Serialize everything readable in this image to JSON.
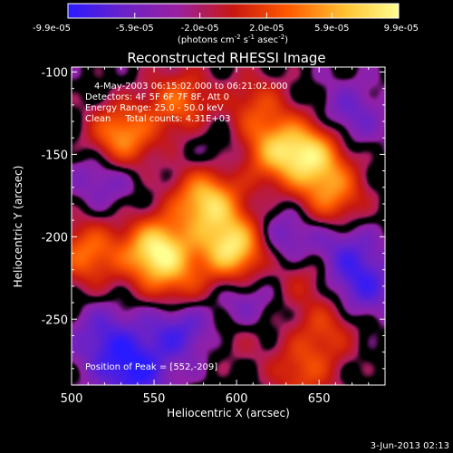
{
  "chart_data": {
    "type": "heatmap",
    "title": "Reconstructed RHESSI Image",
    "xlabel": "Heliocentric X (arcsec)",
    "ylabel": "Heliocentric Y (arcsec)",
    "xlim": [
      500,
      690
    ],
    "ylim": [
      -290,
      -97
    ],
    "xticks": [
      500,
      550,
      600,
      650
    ],
    "yticks": [
      -100,
      -150,
      -200,
      -250
    ],
    "colorbar": {
      "ticks": [
        "-9.9e-05",
        "-5.9e-05",
        "-2.0e-05",
        "2.0e-05",
        "5.9e-05",
        "9.9e-05"
      ],
      "range": [
        -9.9e-05,
        9.9e-05
      ],
      "unit_label": "(photons cm",
      "unit_exp1": "-2",
      "unit_mid": " s",
      "unit_exp2": "-1",
      "unit_tail": " asec",
      "unit_exp3": "-2",
      "unit_close": ")",
      "colors": [
        "#2a1aff",
        "#6a22c8",
        "#9a20a0",
        "#c81810",
        "#ff5a00",
        "#ffc030",
        "#ffff90"
      ]
    },
    "annotations": [
      "4-May-2003 06:15:02.000 to 06:21:02.000",
      "Detectors: 4F 5F 6F 7F 8F, Att 0",
      "Energy Range: 25.0 - 50.0 keV",
      "Clean     Total counts: 4.31E+03"
    ],
    "peak_label": "Position of Peak = [552,-209]",
    "peak": {
      "x": 552,
      "y": -209
    },
    "sources": [
      {
        "x": 552,
        "y": -209,
        "amp": 1.0
      },
      {
        "x": 598,
        "y": -207,
        "amp": 0.95
      },
      {
        "x": 582,
        "y": -178,
        "amp": 0.85
      },
      {
        "x": 622,
        "y": -148,
        "amp": 0.6
      },
      {
        "x": 645,
        "y": -150,
        "amp": 0.8
      },
      {
        "x": 658,
        "y": -175,
        "amp": 0.55
      },
      {
        "x": 510,
        "y": -210,
        "amp": 0.55
      },
      {
        "x": 530,
        "y": -140,
        "amp": 0.7
      },
      {
        "x": 565,
        "y": -118,
        "amp": 0.5
      },
      {
        "x": 612,
        "y": -120,
        "amp": 0.35
      },
      {
        "x": 640,
        "y": -222,
        "amp": 0.3
      },
      {
        "x": 655,
        "y": -255,
        "amp": 0.35
      },
      {
        "x": 640,
        "y": -282,
        "amp": 0.4
      },
      {
        "x": 600,
        "y": -258,
        "amp": 0.2
      },
      {
        "x": 566,
        "y": -232,
        "amp": 0.35
      },
      {
        "x": 520,
        "y": -262,
        "amp": -0.35
      },
      {
        "x": 520,
        "y": -162,
        "amp": -0.3
      },
      {
        "x": 565,
        "y": -255,
        "amp": -0.45
      },
      {
        "x": 538,
        "y": -282,
        "amp": -0.5
      },
      {
        "x": 603,
        "y": -240,
        "amp": -0.3
      },
      {
        "x": 630,
        "y": -202,
        "amp": -0.35
      },
      {
        "x": 664,
        "y": -208,
        "amp": -0.3
      },
      {
        "x": 668,
        "y": -127,
        "amp": -0.3
      },
      {
        "x": 676,
        "y": -230,
        "amp": -0.4
      },
      {
        "x": 590,
        "y": -150,
        "amp": -0.15
      }
    ]
  },
  "timestamp": "3-Jun-2013 02:13"
}
